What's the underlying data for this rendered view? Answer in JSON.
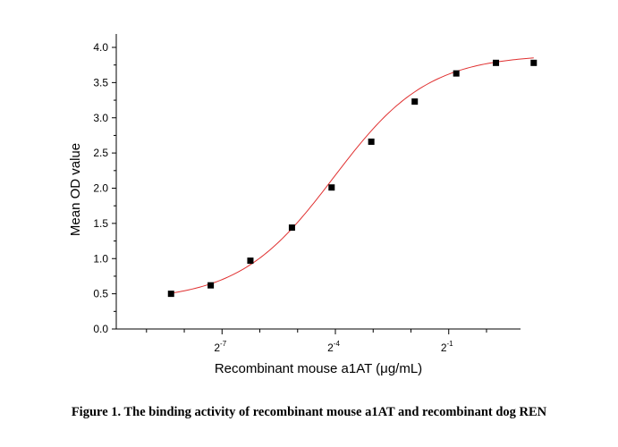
{
  "figure": {
    "caption": "Figure 1. The binding activity of recombinant mouse a1AT and recombinant dog REN"
  },
  "chart_data": {
    "type": "scatter",
    "title": "",
    "xlabel": "Recombinant mouse a1AT (μg/mL)",
    "ylabel": "Mean OD value",
    "x_scale": "log2",
    "xlim": [
      -9.8,
      0.9
    ],
    "ylim": [
      0,
      4.2
    ],
    "x_ticks": [
      {
        "base": "2",
        "exponent": "-7",
        "value": -7
      },
      {
        "base": "2",
        "exponent": "-4",
        "value": -4
      },
      {
        "base": "2",
        "exponent": "-1",
        "value": -1
      }
    ],
    "y_ticks": [
      "0.0",
      "0.5",
      "1.0",
      "1.5",
      "2.0",
      "2.5",
      "3.0",
      "3.5",
      "4.0"
    ],
    "y_tick_values": [
      0,
      0.5,
      1.0,
      1.5,
      2.0,
      2.5,
      3.0,
      3.5,
      4.0
    ],
    "series": [
      {
        "marker": "square",
        "color": "#000000",
        "x": [
          -8.35,
          -7.3,
          -6.25,
          -5.15,
          -4.1,
          -3.05,
          -1.9,
          -0.8,
          0.25,
          1.25
        ],
        "y": [
          0.5,
          0.62,
          0.97,
          1.44,
          2.01,
          2.66,
          3.23,
          3.63,
          3.78,
          3.78
        ]
      }
    ],
    "fit_curve": {
      "color": "#e03030",
      "model": "4PL",
      "bottom": 0.4,
      "top": 3.9,
      "x_mid": -4.05,
      "slope_factor": 1.25
    },
    "grid": false,
    "legend": "none"
  }
}
